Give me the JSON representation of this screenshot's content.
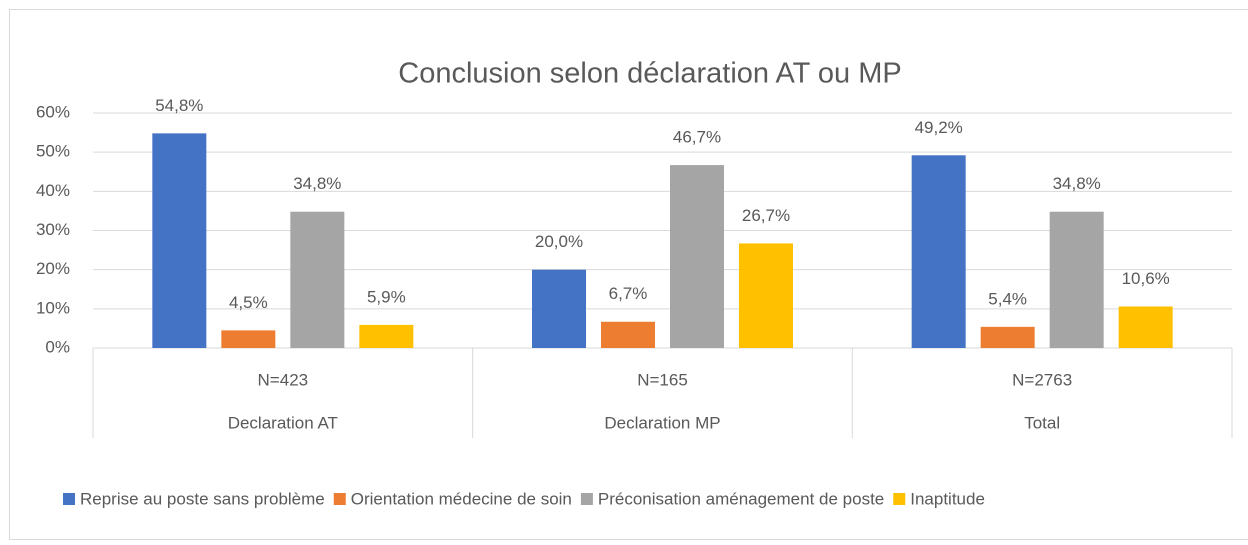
{
  "chart_data": {
    "type": "bar",
    "title": "Conclusion selon déclaration AT ou MP",
    "categories": [
      "N=423",
      "N=165",
      "N=2763"
    ],
    "category_groups": [
      "Declaration AT",
      "Declaration MP",
      "Total"
    ],
    "series": [
      {
        "name": "Reprise au poste sans problème",
        "color": "#4472c4",
        "values": [
          54.8,
          20.0,
          49.2
        ],
        "value_labels": [
          "54,8%",
          "20,0%",
          "49,2%"
        ]
      },
      {
        "name": "Orientation médecine de soin",
        "color": "#ed7d31",
        "values": [
          4.5,
          6.7,
          5.4
        ],
        "value_labels": [
          "4,5%",
          "6,7%",
          "5,4%"
        ]
      },
      {
        "name": "Préconisation aménagement de poste",
        "color": "#a5a5a5",
        "values": [
          34.8,
          46.7,
          34.8
        ],
        "value_labels": [
          "34,8%",
          "46,7%",
          "34,8%"
        ]
      },
      {
        "name": "Inaptitude",
        "color": "#ffc000",
        "values": [
          5.9,
          26.7,
          10.6
        ],
        "value_labels": [
          "5,9%",
          "26,7%",
          "10,6%"
        ]
      }
    ],
    "ylim": [
      0,
      60
    ],
    "yticks": [
      {
        "value": 0,
        "label": "0%"
      },
      {
        "value": 10,
        "label": "10%"
      },
      {
        "value": 20,
        "label": "20%"
      },
      {
        "value": 30,
        "label": "30%"
      },
      {
        "value": 40,
        "label": "40%"
      },
      {
        "value": 50,
        "label": "50%"
      },
      {
        "value": 60,
        "label": "60%"
      }
    ],
    "grid": true,
    "legend": "bottom"
  }
}
